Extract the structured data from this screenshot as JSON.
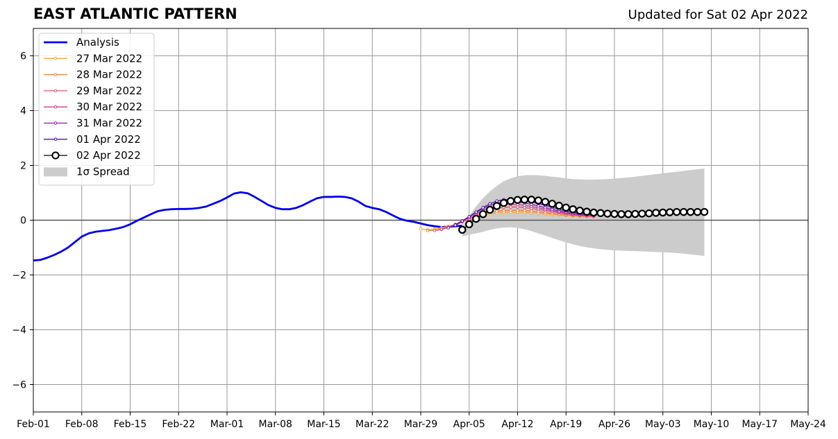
{
  "page": {
    "title": "EAST ATLANTIC PATTERN",
    "updated": "Updated for Sat 02 Apr 2022"
  },
  "chart_data": {
    "type": "line",
    "title": "EAST ATLANTIC PATTERN",
    "subtitle": "Updated for Sat 02 Apr 2022",
    "xlabel": "",
    "ylabel": "",
    "xlim": [
      "2022-02-01",
      "2022-05-24"
    ],
    "ylim": [
      -7,
      7
    ],
    "grid": true,
    "legend_position": "top-left",
    "x_ticks": [
      "Feb-01",
      "Feb-08",
      "Feb-15",
      "Feb-22",
      "Mar-01",
      "Mar-08",
      "Mar-15",
      "Mar-22",
      "Mar-29",
      "Apr-05",
      "Apr-12",
      "Apr-19",
      "Apr-26",
      "May-03",
      "May-10",
      "May-17",
      "May-24"
    ],
    "y_ticks": [
      -6,
      -4,
      -2,
      0,
      2,
      4,
      6
    ],
    "y_tick_labels": [
      "−6",
      "−4",
      "−2",
      "0",
      "2",
      "4",
      "6"
    ],
    "series": [
      {
        "name": "Analysis",
        "color": "#0000ee",
        "marker": "none",
        "start_date": "2022-02-01",
        "values": [
          -1.47,
          -1.45,
          -1.37,
          -1.27,
          -1.15,
          -1.0,
          -0.8,
          -0.6,
          -0.48,
          -0.42,
          -0.39,
          -0.36,
          -0.31,
          -0.25,
          -0.15,
          -0.02,
          0.1,
          0.22,
          0.33,
          0.38,
          0.4,
          0.41,
          0.41,
          0.42,
          0.45,
          0.5,
          0.6,
          0.7,
          0.83,
          0.97,
          1.02,
          0.98,
          0.85,
          0.7,
          0.55,
          0.45,
          0.4,
          0.4,
          0.45,
          0.55,
          0.68,
          0.8,
          0.85,
          0.85,
          0.86,
          0.85,
          0.8,
          0.68,
          0.52,
          0.45,
          0.4,
          0.3,
          0.17,
          0.05,
          -0.02,
          -0.06,
          -0.12,
          -0.18,
          -0.22,
          -0.25,
          -0.24,
          -0.22,
          -0.2
        ]
      },
      {
        "name": "27 Mar 2022",
        "color": "#f8a63a",
        "marker": "small",
        "start_date": "2022-03-29",
        "values": [
          -0.32,
          -0.35,
          -0.33,
          -0.28,
          -0.22,
          -0.15,
          -0.06,
          0.04,
          0.12,
          0.18,
          0.23,
          0.26,
          0.28,
          0.29,
          0.29,
          0.28,
          0.27,
          0.25,
          0.23,
          0.21,
          0.19,
          0.17,
          0.15,
          0.14,
          0.13,
          0.12
        ]
      },
      {
        "name": "28 Mar 2022",
        "color": "#ef7a3b",
        "marker": "small",
        "start_date": "2022-03-30",
        "values": [
          -0.38,
          -0.37,
          -0.32,
          -0.25,
          -0.16,
          -0.06,
          0.05,
          0.15,
          0.23,
          0.29,
          0.33,
          0.35,
          0.36,
          0.36,
          0.35,
          0.33,
          0.31,
          0.28,
          0.25,
          0.22,
          0.19,
          0.17,
          0.15,
          0.14,
          0.13
        ]
      },
      {
        "name": "29 Mar 2022",
        "color": "#e0576a",
        "marker": "small",
        "start_date": "2022-03-31",
        "values": [
          -0.38,
          -0.34,
          -0.27,
          -0.18,
          -0.07,
          0.05,
          0.17,
          0.28,
          0.37,
          0.43,
          0.47,
          0.48,
          0.48,
          0.46,
          0.43,
          0.39,
          0.35,
          0.31,
          0.27,
          0.23,
          0.2,
          0.18,
          0.16,
          0.15
        ]
      },
      {
        "name": "30 Mar 2022",
        "color": "#c13f8f",
        "marker": "small",
        "start_date": "2022-04-01",
        "values": [
          -0.33,
          -0.26,
          -0.16,
          -0.04,
          0.09,
          0.23,
          0.36,
          0.46,
          0.53,
          0.57,
          0.58,
          0.57,
          0.54,
          0.5,
          0.45,
          0.4,
          0.35,
          0.3,
          0.26,
          0.22,
          0.19,
          0.17,
          0.16
        ]
      },
      {
        "name": "31 Mar 2022",
        "color": "#8e1cb0",
        "marker": "small",
        "start_date": "2022-04-02",
        "values": [
          -0.28,
          -0.16,
          -0.02,
          0.13,
          0.28,
          0.42,
          0.54,
          0.62,
          0.66,
          0.67,
          0.66,
          0.63,
          0.58,
          0.52,
          0.46,
          0.4,
          0.34,
          0.29,
          0.25,
          0.21,
          0.19,
          0.17
        ]
      },
      {
        "name": "01 Apr 2022",
        "color": "#4f12a8",
        "marker": "small",
        "start_date": "2022-04-03",
        "values": [
          -0.18,
          -0.03,
          0.13,
          0.3,
          0.46,
          0.6,
          0.7,
          0.75,
          0.76,
          0.75,
          0.72,
          0.67,
          0.61,
          0.54,
          0.47,
          0.4,
          0.34,
          0.29,
          0.25,
          0.22,
          0.2
        ]
      },
      {
        "name": "02 Apr 2022",
        "color": "#000000",
        "marker": "large-open-circle",
        "start_date": "2022-04-04",
        "values": [
          -0.35,
          -0.15,
          0.05,
          0.22,
          0.38,
          0.52,
          0.63,
          0.7,
          0.74,
          0.75,
          0.75,
          0.72,
          0.67,
          0.6,
          0.53,
          0.46,
          0.4,
          0.35,
          0.31,
          0.28,
          0.26,
          0.24,
          0.23,
          0.22,
          0.22,
          0.23,
          0.24,
          0.25,
          0.27,
          0.28,
          0.29,
          0.3,
          0.3,
          0.3,
          0.3,
          0.3
        ]
      }
    ],
    "spread": {
      "name": "1σ Spread",
      "color": "#cccccc",
      "start_date": "2022-04-04",
      "upper": [
        -0.2,
        0.15,
        0.5,
        0.8,
        1.05,
        1.25,
        1.42,
        1.53,
        1.6,
        1.64,
        1.65,
        1.64,
        1.62,
        1.59,
        1.56,
        1.53,
        1.5,
        1.49,
        1.48,
        1.48,
        1.49,
        1.5,
        1.52,
        1.54,
        1.56,
        1.59,
        1.62,
        1.65,
        1.68,
        1.71,
        1.74,
        1.77,
        1.8,
        1.83,
        1.86,
        1.89
      ],
      "lower": [
        -0.6,
        -0.53,
        -0.48,
        -0.42,
        -0.35,
        -0.3,
        -0.27,
        -0.26,
        -0.28,
        -0.33,
        -0.4,
        -0.48,
        -0.56,
        -0.65,
        -0.73,
        -0.81,
        -0.88,
        -0.94,
        -0.99,
        -1.03,
        -1.06,
        -1.08,
        -1.1,
        -1.11,
        -1.12,
        -1.13,
        -1.14,
        -1.15,
        -1.16,
        -1.17,
        -1.18,
        -1.2,
        -1.22,
        -1.25,
        -1.28,
        -1.3
      ]
    }
  }
}
